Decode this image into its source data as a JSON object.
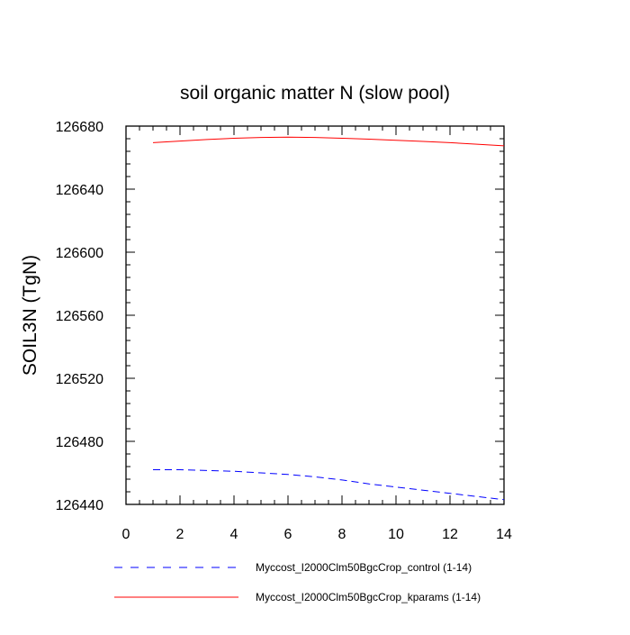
{
  "chart_data": {
    "type": "line",
    "title": "soil organic matter N (slow pool)",
    "xlabel": "",
    "ylabel": "SOIL3N  (TgN)",
    "xlim": [
      0,
      14
    ],
    "ylim": [
      126440,
      126680
    ],
    "x_ticks": [
      0,
      2,
      4,
      6,
      8,
      10,
      12,
      14
    ],
    "y_ticks": [
      126440,
      126480,
      126520,
      126560,
      126600,
      126640,
      126680
    ],
    "x": [
      1,
      2,
      3,
      4,
      5,
      6,
      7,
      8,
      9,
      10,
      11,
      12,
      13,
      14
    ],
    "series": [
      {
        "name": "Myccost_I2000Clm50BgcCrop_control (1-14)",
        "color": "#0000ff",
        "dash": "dashed",
        "values": [
          126462,
          126462,
          126461.5,
          126461,
          126460,
          126459,
          126457.5,
          126455.5,
          126453,
          126451,
          126449,
          126447,
          126445,
          126443
        ]
      },
      {
        "name": "Myccost_I2000Clm50BgcCrop_kparams (1-14)",
        "color": "#ff0000",
        "dash": "solid",
        "values": [
          126669.5,
          126670.5,
          126671.5,
          126672.3,
          126672.8,
          126673,
          126672.8,
          126672.3,
          126671.7,
          126671,
          126670.3,
          126669.5,
          126668.5,
          126667.5
        ]
      }
    ],
    "legend_position": "bottom"
  }
}
